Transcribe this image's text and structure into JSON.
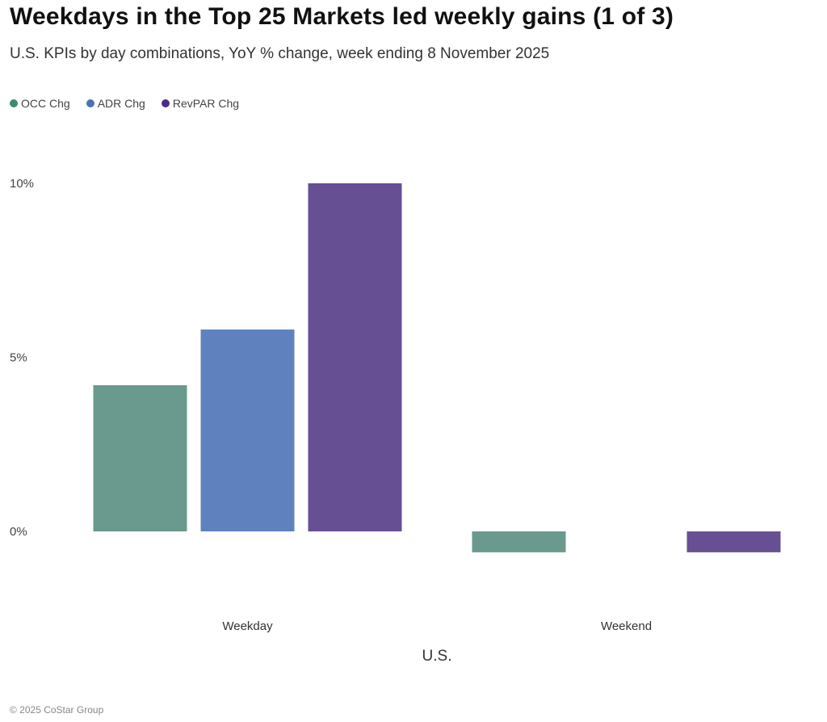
{
  "header": {
    "title": "Weekdays in the Top 25 Markets led weekly gains (1 of 3)",
    "subtitle": "U.S. KPIs by day combinations, YoY % change, week ending 8 November 2025"
  },
  "legend": [
    {
      "label": "OCC Chg",
      "color": "#3e8a72"
    },
    {
      "label": "ADR Chg",
      "color": "#4a72b8"
    },
    {
      "label": "RevPAR Chg",
      "color": "#4b2c84"
    }
  ],
  "chart_data": {
    "type": "bar",
    "categories": [
      "Weekday",
      "Weekend"
    ],
    "xlabel": "U.S.",
    "ylabel": "",
    "ylim": [
      -1.5,
      10
    ],
    "yticks": [
      0,
      5,
      10
    ],
    "ytick_labels": [
      "0%",
      "5%",
      "10%"
    ],
    "grid": false,
    "legend_position": "top-left",
    "series": [
      {
        "name": "OCC Chg",
        "color": "#6a9a8e",
        "values": [
          4.2,
          -0.6
        ]
      },
      {
        "name": "ADR Chg",
        "color": "#5f82be",
        "values": [
          5.8,
          0
        ]
      },
      {
        "name": "RevPAR Chg",
        "color": "#674f93",
        "values": [
          10.0,
          -0.6
        ]
      }
    ]
  },
  "footer": {
    "copyright": "© 2025 CoStar Group"
  }
}
